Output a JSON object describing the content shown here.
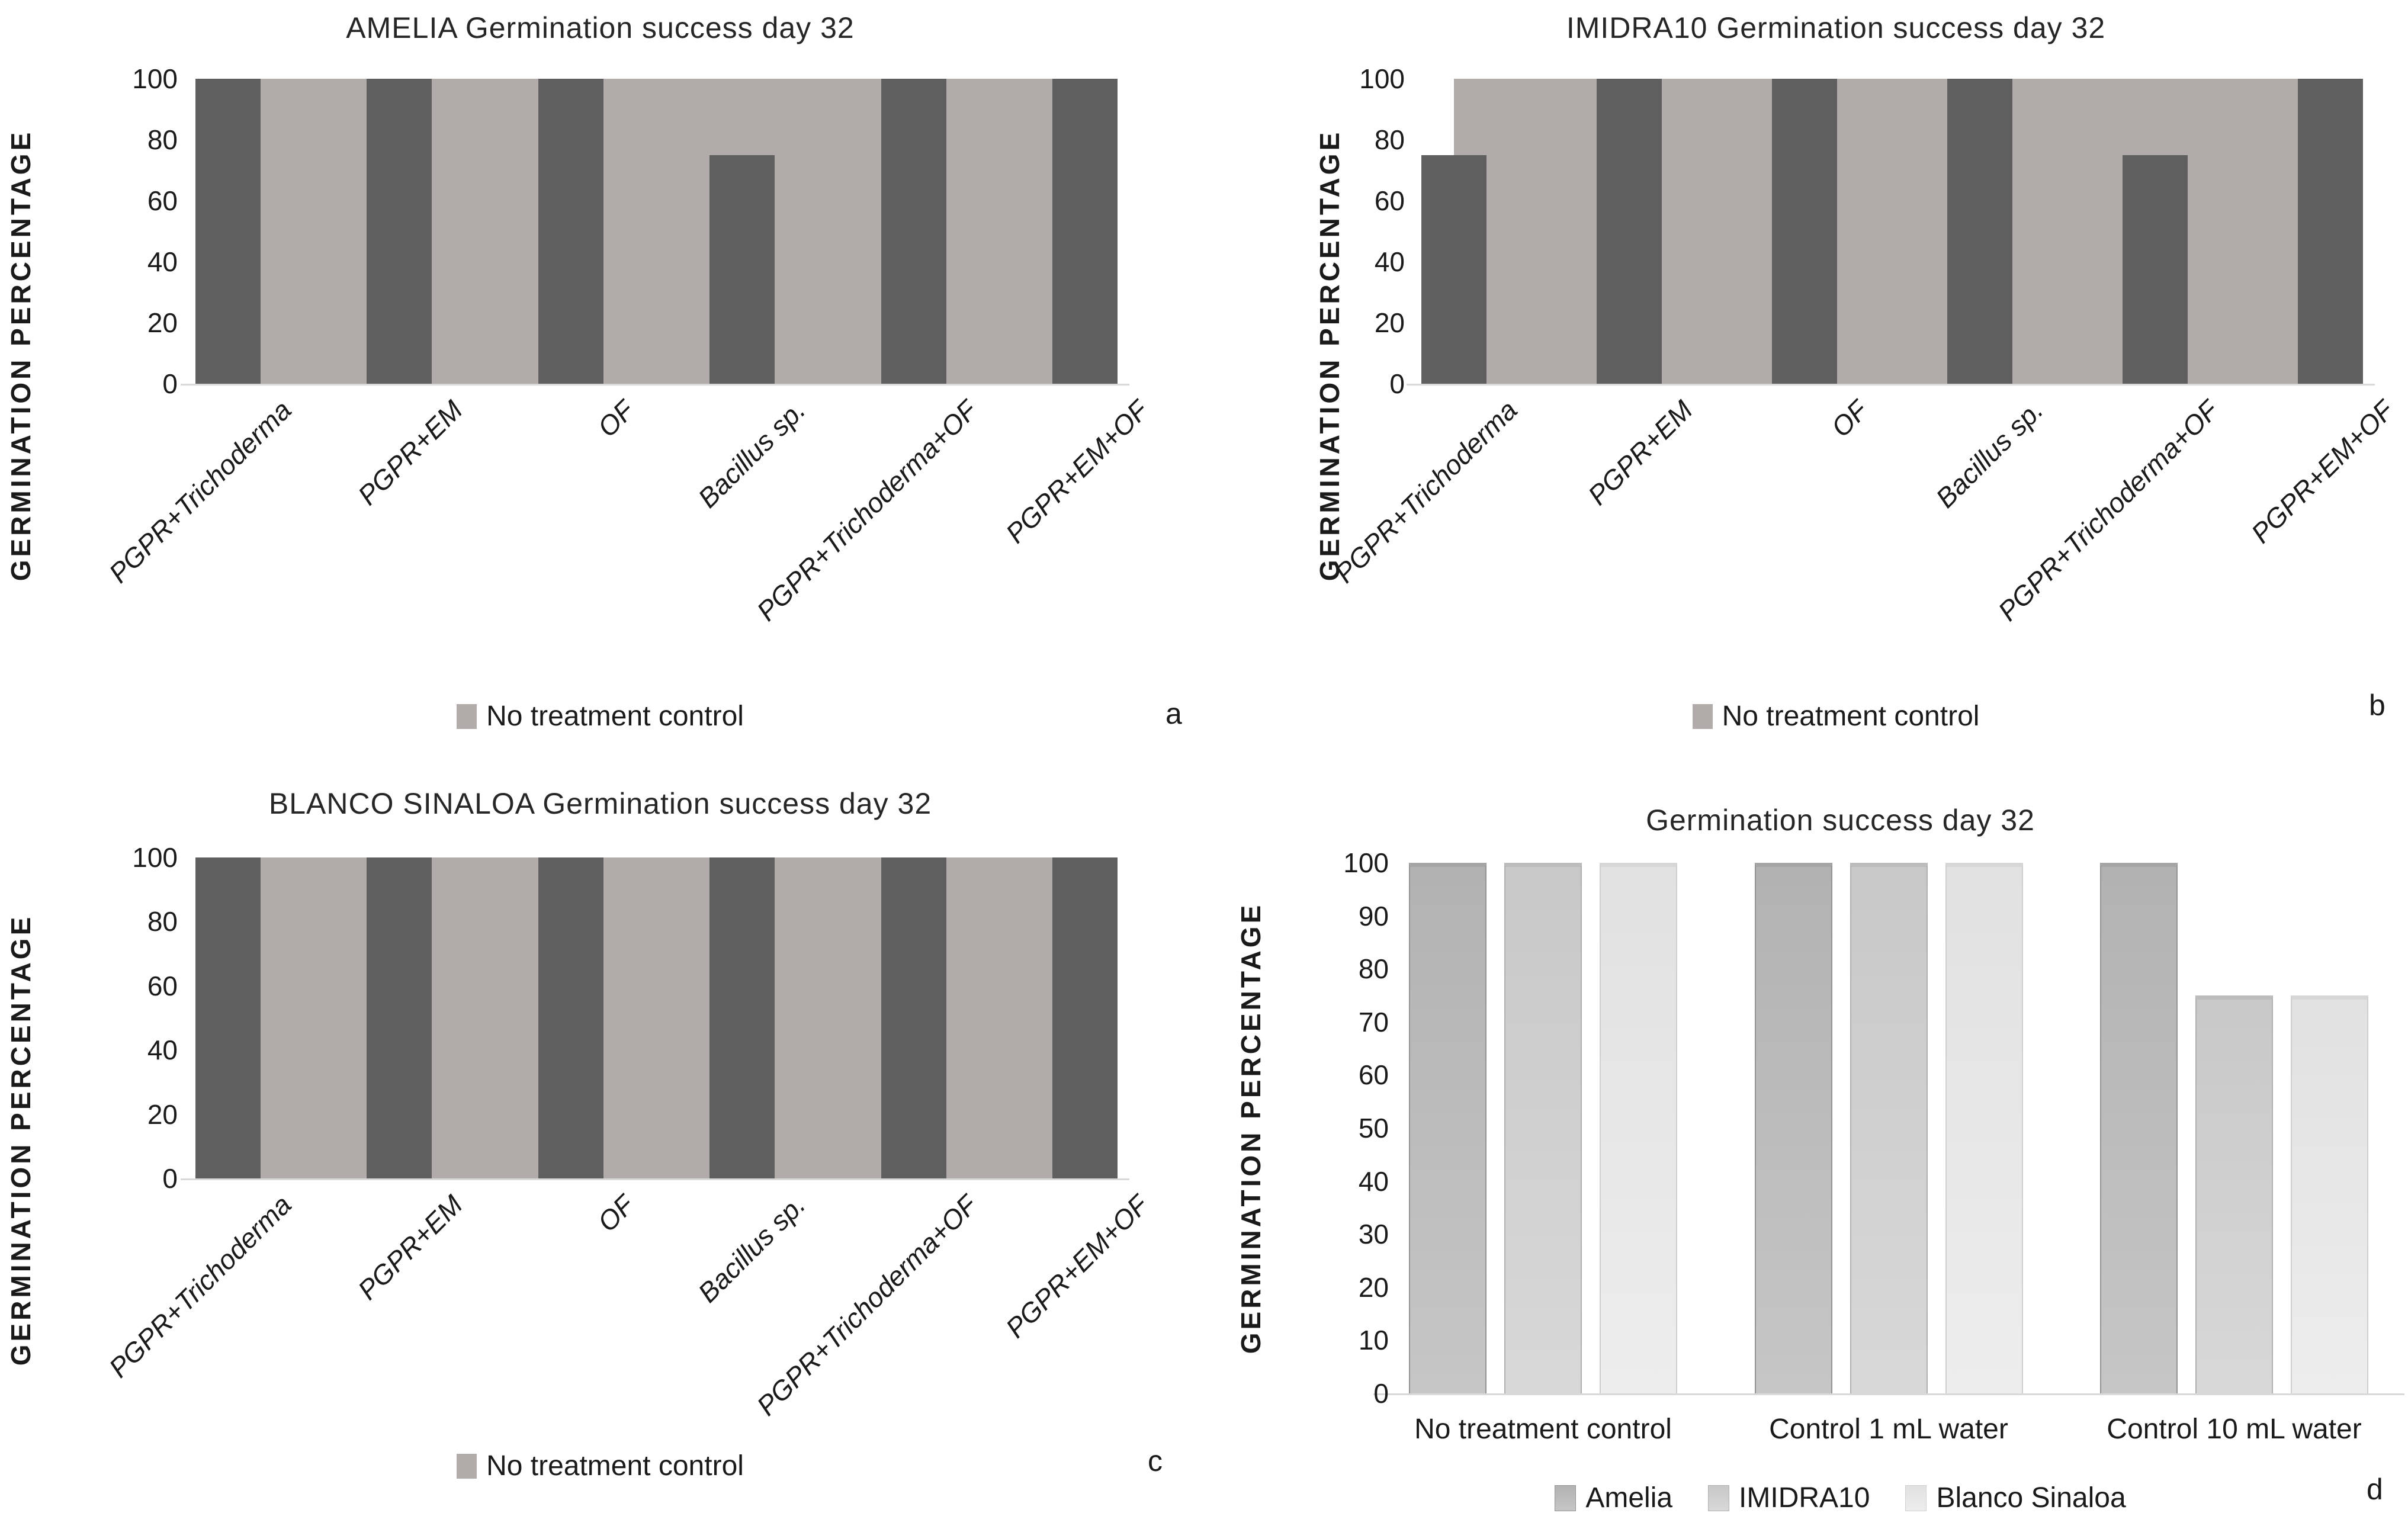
{
  "colors": {
    "dark_bar": "#5f5f5f",
    "control_band": "#b1acaa",
    "baseline": "#d9d9d9",
    "text": "#1a1a1a",
    "series_d": [
      {
        "cap": "#a6a6a6",
        "top": "#b2b2b2",
        "bottom": "#c6c6c6",
        "edge": "#949494"
      },
      {
        "cap": "#bdbdbd",
        "top": "#c8c8c8",
        "bottom": "#d8d8d8",
        "edge": "#b0b0b0"
      },
      {
        "cap": "#d7d7d7",
        "top": "#e1e1e1",
        "bottom": "#ededed",
        "edge": "#cfcfcf"
      }
    ]
  },
  "chart_data": [
    {
      "id": "a",
      "type": "bar",
      "title": "AMELIA Germination success day 32",
      "ylabel": "GERMINATION PERCENTAGE",
      "xlabel": "",
      "ylim": [
        0,
        100
      ],
      "yticks": [
        0,
        20,
        40,
        60,
        80,
        100
      ],
      "grid": false,
      "legend_position": "bottom",
      "categories": [
        "PGPR+Trichoderma",
        "PGPR+EM",
        "OF",
        "Bacillus sp.",
        "PGPR+Trichoderma+OF",
        "PGPR+EM+OF"
      ],
      "values": [
        100,
        100,
        100,
        75,
        100,
        100
      ],
      "control_series": {
        "name": "No treatment control",
        "value": 100
      },
      "panel_letter": "a"
    },
    {
      "id": "b",
      "type": "bar",
      "title": "IMIDRA10 Germination success day 32",
      "ylabel": "GERMINATION PERCENTAGE",
      "xlabel": "",
      "ylim": [
        0,
        100
      ],
      "yticks": [
        0,
        20,
        40,
        60,
        80,
        100
      ],
      "grid": false,
      "legend_position": "bottom",
      "categories": [
        "PGPR+Trichoderma",
        "PGPR+EM",
        "OF",
        "Bacillus sp.",
        "PGPR+Trichoderma+OF",
        "PGPR+EM+OF"
      ],
      "values": [
        75,
        100,
        100,
        100,
        75,
        100
      ],
      "control_series": {
        "name": "No treatment control",
        "value": 100
      },
      "panel_letter": "b"
    },
    {
      "id": "c",
      "type": "bar",
      "title": "BLANCO SINALOA Germination success day 32",
      "ylabel": "GERMINATION PERCENTAGE",
      "xlabel": "",
      "ylim": [
        0,
        100
      ],
      "yticks": [
        0,
        20,
        40,
        60,
        80,
        100
      ],
      "grid": false,
      "legend_position": "bottom",
      "categories": [
        "PGPR+Trichoderma",
        "PGPR+EM",
        "OF",
        "Bacillus sp.",
        "PGPR+Trichoderma+OF",
        "PGPR+EM+OF"
      ],
      "values": [
        100,
        100,
        100,
        100,
        100,
        100
      ],
      "control_series": {
        "name": "No treatment control",
        "value": 100
      },
      "panel_letter": "c"
    },
    {
      "id": "d",
      "type": "bar",
      "title": "Germination success day 32",
      "ylabel": "GERMINATION PERCENTAGE",
      "xlabel": "",
      "ylim": [
        0,
        100
      ],
      "yticks": [
        0,
        10,
        20,
        30,
        40,
        50,
        60,
        70,
        80,
        90,
        100
      ],
      "grid": false,
      "legend_position": "bottom",
      "categories": [
        "No treatment control",
        "Control 1 mL water",
        "Control 10 mL water"
      ],
      "series": [
        {
          "name": "Amelia",
          "values": [
            100,
            100,
            100
          ]
        },
        {
          "name": "IMIDRA10",
          "values": [
            100,
            100,
            75
          ]
        },
        {
          "name": "Blanco Sinaloa",
          "values": [
            100,
            100,
            75
          ]
        }
      ],
      "panel_letter": "d"
    }
  ]
}
